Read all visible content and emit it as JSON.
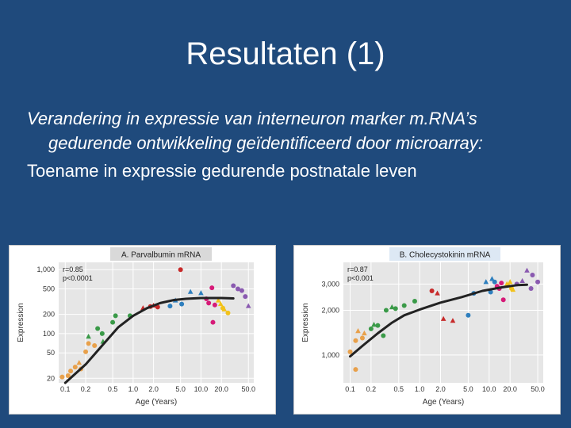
{
  "slide": {
    "title": "Resultaten (1)",
    "bullets": [
      "Verandering in expressie van interneuron marker m.RNA’s gedurende ontwikkeling geïdentificeerd door microarray:",
      "Toename in expressie gedurende postnatale leven"
    ]
  },
  "colors": {
    "background": "#1f4a7c",
    "plot_area": "#e6e6e6",
    "title_box_a": "#d9d9d9",
    "title_box_b": "#dde8f4",
    "fit_line": "#222222",
    "series_colors": [
      "#e8a04a",
      "#3a9a48",
      "#c72a2a",
      "#2e7fbe",
      "#d61a78",
      "#f2c21a",
      "#8a5ab0"
    ]
  },
  "chart_data": [
    {
      "type": "scatter",
      "title": "A. Parvalbumin mRNA",
      "xlabel": "Age (Years)",
      "ylabel": "Expression",
      "x_scale": "log",
      "y_scale": "log",
      "xlim": [
        0.08,
        60
      ],
      "ylim": [
        17,
        1300
      ],
      "x_ticks": [
        0.1,
        0.2,
        0.5,
        1.0,
        2.0,
        5.0,
        10.0,
        20.0,
        50.0
      ],
      "x_tick_labels": [
        "0.1",
        "0.2",
        "0.5",
        "1.0",
        "2.0",
        "5.0",
        "10.0",
        "20.0",
        "50.0"
      ],
      "y_ticks": [
        20,
        50,
        100,
        200,
        500,
        1000
      ],
      "y_tick_labels": [
        "20",
        "50",
        "100",
        "200",
        "500",
        "1,000"
      ],
      "annotation": [
        "r=0.85",
        "p<0.0001"
      ],
      "grid": true,
      "fit_line": {
        "x": [
          0.1,
          0.2,
          0.35,
          0.6,
          1.0,
          1.6,
          2.5,
          4.0,
          6.0,
          10.0,
          20.0,
          30.0
        ],
        "y": [
          17,
          33,
          65,
          125,
          190,
          250,
          300,
          335,
          350,
          360,
          360,
          355
        ]
      },
      "points": [
        {
          "x": 0.09,
          "y": 21,
          "shape": "circle",
          "color": "#e8a04a"
        },
        {
          "x": 0.11,
          "y": 22,
          "shape": "circle",
          "color": "#e8a04a"
        },
        {
          "x": 0.12,
          "y": 26,
          "shape": "circle",
          "color": "#e8a04a"
        },
        {
          "x": 0.14,
          "y": 30,
          "shape": "circle",
          "color": "#e8a04a"
        },
        {
          "x": 0.16,
          "y": 35,
          "shape": "triangle",
          "color": "#e8a04a"
        },
        {
          "x": 0.17,
          "y": 28,
          "shape": "circle",
          "color": "#e8a04a"
        },
        {
          "x": 0.2,
          "y": 52,
          "shape": "circle",
          "color": "#e8a04a"
        },
        {
          "x": 0.22,
          "y": 70,
          "shape": "circle",
          "color": "#e8a04a"
        },
        {
          "x": 0.22,
          "y": 90,
          "shape": "triangle",
          "color": "#3a9a48"
        },
        {
          "x": 0.27,
          "y": 65,
          "shape": "circle",
          "color": "#e8a04a"
        },
        {
          "x": 0.3,
          "y": 120,
          "shape": "circle",
          "color": "#3a9a48"
        },
        {
          "x": 0.35,
          "y": 100,
          "shape": "circle",
          "color": "#3a9a48"
        },
        {
          "x": 0.36,
          "y": 75,
          "shape": "triangle",
          "color": "#3a9a48"
        },
        {
          "x": 0.5,
          "y": 150,
          "shape": "circle",
          "color": "#3a9a48"
        },
        {
          "x": 0.55,
          "y": 190,
          "shape": "circle",
          "color": "#3a9a48"
        },
        {
          "x": 0.9,
          "y": 190,
          "shape": "circle",
          "color": "#3a9a48"
        },
        {
          "x": 1.4,
          "y": 250,
          "shape": "triangle",
          "color": "#c72a2a"
        },
        {
          "x": 1.8,
          "y": 265,
          "shape": "circle",
          "color": "#c72a2a"
        },
        {
          "x": 2.0,
          "y": 275,
          "shape": "triangle",
          "color": "#c72a2a"
        },
        {
          "x": 2.3,
          "y": 260,
          "shape": "circle",
          "color": "#c72a2a"
        },
        {
          "x": 3.5,
          "y": 270,
          "shape": "circle",
          "color": "#2e7fbe"
        },
        {
          "x": 4.2,
          "y": 330,
          "shape": "triangle",
          "color": "#2e7fbe"
        },
        {
          "x": 5.0,
          "y": 1000,
          "shape": "circle",
          "color": "#c72a2a"
        },
        {
          "x": 5.2,
          "y": 290,
          "shape": "circle",
          "color": "#2e7fbe"
        },
        {
          "x": 7.0,
          "y": 450,
          "shape": "triangle",
          "color": "#2e7fbe"
        },
        {
          "x": 10.0,
          "y": 430,
          "shape": "triangle",
          "color": "#2e7fbe"
        },
        {
          "x": 12.0,
          "y": 350,
          "shape": "circle",
          "color": "#d61a78"
        },
        {
          "x": 13.0,
          "y": 300,
          "shape": "circle",
          "color": "#d61a78"
        },
        {
          "x": 14.5,
          "y": 520,
          "shape": "circle",
          "color": "#d61a78"
        },
        {
          "x": 15.0,
          "y": 150,
          "shape": "circle",
          "color": "#d61a78"
        },
        {
          "x": 16.0,
          "y": 280,
          "shape": "circle",
          "color": "#d61a78"
        },
        {
          "x": 18.0,
          "y": 330,
          "shape": "triangle",
          "color": "#f2c21a"
        },
        {
          "x": 19.5,
          "y": 290,
          "shape": "triangle",
          "color": "#f2c21a"
        },
        {
          "x": 21.0,
          "y": 250,
          "shape": "circle",
          "color": "#f2c21a"
        },
        {
          "x": 22.0,
          "y": 240,
          "shape": "triangle",
          "color": "#f2c21a"
        },
        {
          "x": 25.0,
          "y": 210,
          "shape": "circle",
          "color": "#f2c21a"
        },
        {
          "x": 30.0,
          "y": 560,
          "shape": "circle",
          "color": "#8a5ab0"
        },
        {
          "x": 35.0,
          "y": 500,
          "shape": "circle",
          "color": "#8a5ab0"
        },
        {
          "x": 40.0,
          "y": 470,
          "shape": "circle",
          "color": "#8a5ab0"
        },
        {
          "x": 45.0,
          "y": 380,
          "shape": "circle",
          "color": "#8a5ab0"
        },
        {
          "x": 50.0,
          "y": 270,
          "shape": "triangle",
          "color": "#8a5ab0"
        }
      ]
    },
    {
      "type": "scatter",
      "title": "B. Cholecystokinin mRNA",
      "xlabel": "Age (Years)",
      "ylabel": "Expression",
      "x_scale": "log",
      "y_scale": "log",
      "xlim": [
        0.08,
        60
      ],
      "ylim": [
        650,
        4200
      ],
      "x_ticks": [
        0.1,
        0.2,
        0.5,
        1.0,
        2.0,
        5.0,
        10.0,
        20.0,
        50.0
      ],
      "x_tick_labels": [
        "0.1",
        "0.2",
        "0.5",
        "1.0",
        "2.0",
        "5.0",
        "10.0",
        "20.0",
        "50.0"
      ],
      "y_ticks": [
        1000,
        2000,
        3000
      ],
      "y_tick_labels": [
        "1,000",
        "2,000",
        "3,000"
      ],
      "annotation": [
        "r=0.87",
        "p<0.001"
      ],
      "grid": true,
      "fit_line": {
        "x": [
          0.1,
          0.15,
          0.25,
          0.4,
          0.6,
          1.0,
          2.0,
          4.0,
          8.0,
          15.0,
          25.0,
          35.0
        ],
        "y": [
          980,
          1150,
          1400,
          1650,
          1850,
          2020,
          2250,
          2450,
          2700,
          2850,
          2950,
          2970
        ]
      },
      "points": [
        {
          "x": 0.1,
          "y": 1050,
          "shape": "circle",
          "color": "#e8a04a"
        },
        {
          "x": 0.12,
          "y": 800,
          "shape": "circle",
          "color": "#e8a04a"
        },
        {
          "x": 0.13,
          "y": 1450,
          "shape": "triangle",
          "color": "#e8a04a"
        },
        {
          "x": 0.12,
          "y": 1250,
          "shape": "circle",
          "color": "#e8a04a"
        },
        {
          "x": 0.15,
          "y": 1300,
          "shape": "circle",
          "color": "#e8a04a"
        },
        {
          "x": 0.16,
          "y": 1400,
          "shape": "triangle",
          "color": "#e8a04a"
        },
        {
          "x": 0.2,
          "y": 1500,
          "shape": "circle",
          "color": "#3a9a48"
        },
        {
          "x": 0.22,
          "y": 1600,
          "shape": "triangle",
          "color": "#3a9a48"
        },
        {
          "x": 0.25,
          "y": 1580,
          "shape": "circle",
          "color": "#3a9a48"
        },
        {
          "x": 0.3,
          "y": 1350,
          "shape": "circle",
          "color": "#3a9a48"
        },
        {
          "x": 0.33,
          "y": 2000,
          "shape": "circle",
          "color": "#3a9a48"
        },
        {
          "x": 0.4,
          "y": 2100,
          "shape": "triangle",
          "color": "#3a9a48"
        },
        {
          "x": 0.45,
          "y": 2050,
          "shape": "circle",
          "color": "#3a9a48"
        },
        {
          "x": 0.6,
          "y": 2150,
          "shape": "circle",
          "color": "#3a9a48"
        },
        {
          "x": 0.85,
          "y": 2300,
          "shape": "circle",
          "color": "#3a9a48"
        },
        {
          "x": 1.5,
          "y": 2700,
          "shape": "circle",
          "color": "#c72a2a"
        },
        {
          "x": 1.8,
          "y": 2600,
          "shape": "triangle",
          "color": "#c72a2a"
        },
        {
          "x": 2.2,
          "y": 1750,
          "shape": "triangle",
          "color": "#c72a2a"
        },
        {
          "x": 3.0,
          "y": 1700,
          "shape": "triangle",
          "color": "#c72a2a"
        },
        {
          "x": 5.0,
          "y": 1850,
          "shape": "circle",
          "color": "#2e7fbe"
        },
        {
          "x": 6.0,
          "y": 2600,
          "shape": "circle",
          "color": "#2e7fbe"
        },
        {
          "x": 9.0,
          "y": 3100,
          "shape": "triangle",
          "color": "#2e7fbe"
        },
        {
          "x": 10.5,
          "y": 2650,
          "shape": "circle",
          "color": "#2e7fbe"
        },
        {
          "x": 11.0,
          "y": 3250,
          "shape": "triangle",
          "color": "#2e7fbe"
        },
        {
          "x": 12.0,
          "y": 3100,
          "shape": "circle",
          "color": "#2e7fbe"
        },
        {
          "x": 13.0,
          "y": 2900,
          "shape": "circle",
          "color": "#d61a78"
        },
        {
          "x": 14.0,
          "y": 2800,
          "shape": "circle",
          "color": "#d61a78"
        },
        {
          "x": 15.0,
          "y": 3050,
          "shape": "circle",
          "color": "#d61a78"
        },
        {
          "x": 16.0,
          "y": 2350,
          "shape": "circle",
          "color": "#d61a78"
        },
        {
          "x": 18.0,
          "y": 3000,
          "shape": "triangle",
          "color": "#f2c21a"
        },
        {
          "x": 19.0,
          "y": 2950,
          "shape": "triangle",
          "color": "#f2c21a"
        },
        {
          "x": 20.0,
          "y": 3100,
          "shape": "triangle",
          "color": "#f2c21a"
        },
        {
          "x": 21.0,
          "y": 2800,
          "shape": "circle",
          "color": "#f2c21a"
        },
        {
          "x": 22.0,
          "y": 2750,
          "shape": "triangle",
          "color": "#f2c21a"
        },
        {
          "x": 25.0,
          "y": 3000,
          "shape": "circle",
          "color": "#8a5ab0"
        },
        {
          "x": 30.0,
          "y": 3150,
          "shape": "triangle",
          "color": "#8a5ab0"
        },
        {
          "x": 35.0,
          "y": 3700,
          "shape": "triangle",
          "color": "#8a5ab0"
        },
        {
          "x": 40.0,
          "y": 2800,
          "shape": "circle",
          "color": "#8a5ab0"
        },
        {
          "x": 42.0,
          "y": 3450,
          "shape": "circle",
          "color": "#8a5ab0"
        },
        {
          "x": 50.0,
          "y": 3100,
          "shape": "circle",
          "color": "#8a5ab0"
        }
      ]
    }
  ]
}
